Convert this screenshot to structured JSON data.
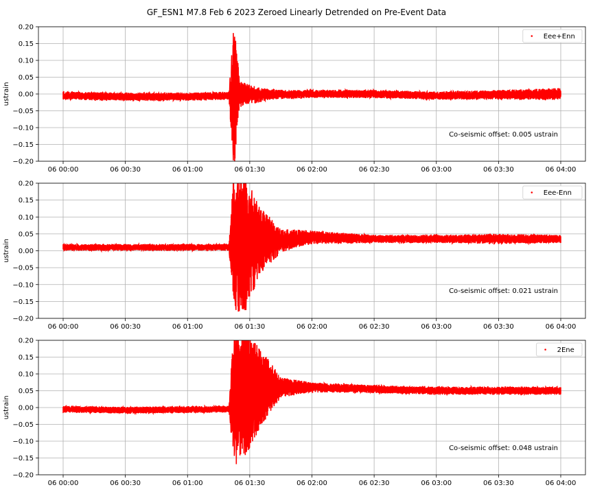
{
  "figure": {
    "title": "GF_ESN1 M7.8 Feb 6 2023 Zeroed Linearly Detrended on Pre-Event Data"
  },
  "colors": {
    "series": "#ff0000",
    "grid": "#b0b0b0",
    "axis": "#000000",
    "legend_border": "#cccccc"
  },
  "chart_data": [
    {
      "type": "scatter",
      "ylabel": "ustrain",
      "xlabel": "",
      "xlim": [
        "2023-02-06T00:00",
        "2023-02-06T04:00"
      ],
      "ylim": [
        -0.2,
        0.2
      ],
      "x_ticks": [
        "06 00:00",
        "06 00:30",
        "06 01:00",
        "06 01:30",
        "06 02:00",
        "06 02:30",
        "06 03:00",
        "06 03:30",
        "06 04:00"
      ],
      "y_ticks": [
        "0.20",
        "0.15",
        "0.10",
        "0.05",
        "0.00",
        "−0.05",
        "−0.10",
        "−0.15",
        "−0.20"
      ],
      "grid": true,
      "legend": {
        "position": "top-right",
        "entries": [
          "Eee+Enn"
        ]
      },
      "annotation": "Co-seismic offset: 0.005 ustrain",
      "series": [
        {
          "name": "Eee+Enn",
          "color": "#ff0000",
          "envelope": {
            "time": [
              "00:00",
              "00:30",
              "01:00",
              "01:20",
              "01:22",
              "01:23",
              "01:25",
              "01:30",
              "01:40",
              "02:00",
              "02:30",
              "03:00",
              "03:30",
              "04:00"
            ],
            "center": [
              -0.005,
              -0.008,
              -0.008,
              -0.005,
              0.0,
              0.0,
              0.0,
              -0.002,
              -0.002,
              0.0,
              0.0,
              -0.005,
              -0.002,
              0.0
            ],
            "half_amplitude": [
              0.012,
              0.012,
              0.012,
              0.012,
              0.2,
              0.2,
              0.04,
              0.03,
              0.015,
              0.012,
              0.012,
              0.012,
              0.014,
              0.018
            ]
          }
        }
      ]
    },
    {
      "type": "scatter",
      "ylabel": "ustrain",
      "xlabel": "",
      "xlim": [
        "2023-02-06T00:00",
        "2023-02-06T04:00"
      ],
      "ylim": [
        -0.2,
        0.2
      ],
      "x_ticks": [
        "06 00:00",
        "06 00:30",
        "06 01:00",
        "06 01:30",
        "06 02:00",
        "06 02:30",
        "06 03:00",
        "06 03:30",
        "06 04:00"
      ],
      "y_ticks": [
        "0.20",
        "0.15",
        "0.10",
        "0.05",
        "0.00",
        "−0.05",
        "−0.10",
        "−0.15",
        "−0.20"
      ],
      "grid": true,
      "legend": {
        "position": "top-right",
        "entries": [
          "Eee-Enn"
        ]
      },
      "annotation": "Co-seismic offset: 0.021 ustrain",
      "series": [
        {
          "name": "Eee-Enn",
          "color": "#ff0000",
          "envelope": {
            "time": [
              "00:00",
              "00:30",
              "01:00",
              "01:20",
              "01:22",
              "01:28",
              "01:35",
              "01:45",
              "02:00",
              "02:30",
              "03:00",
              "03:30",
              "04:00"
            ],
            "center": [
              0.01,
              0.01,
              0.01,
              0.01,
              0.02,
              0.02,
              0.03,
              0.03,
              0.04,
              0.035,
              0.035,
              0.035,
              0.035
            ],
            "half_amplitude": [
              0.01,
              0.01,
              0.01,
              0.01,
              0.2,
              0.2,
              0.1,
              0.035,
              0.02,
              0.012,
              0.012,
              0.015,
              0.012
            ]
          }
        }
      ]
    },
    {
      "type": "scatter",
      "ylabel": "ustrain",
      "xlabel": "",
      "xlim": [
        "2023-02-06T00:00",
        "2023-02-06T04:00"
      ],
      "ylim": [
        -0.2,
        0.2
      ],
      "x_ticks": [
        "06 00:00",
        "06 00:30",
        "06 01:00",
        "06 01:30",
        "06 02:00",
        "06 02:30",
        "06 03:00",
        "06 03:30",
        "06 04:00"
      ],
      "y_ticks": [
        "0.20",
        "0.15",
        "0.10",
        "0.05",
        "0.00",
        "−0.05",
        "−0.10",
        "−0.15",
        "−0.20"
      ],
      "grid": true,
      "legend": {
        "position": "top-right",
        "entries": [
          "2Ene"
        ]
      },
      "annotation": "Co-seismic offset: 0.048 ustrain",
      "series": [
        {
          "name": "2Ene",
          "color": "#ff0000",
          "envelope": {
            "time": [
              "00:00",
              "00:30",
              "01:00",
              "01:20",
              "01:22",
              "01:28",
              "01:35",
              "01:45",
              "02:00",
              "02:30",
              "03:00",
              "03:30",
              "04:00"
            ],
            "center": [
              -0.005,
              -0.008,
              -0.006,
              -0.005,
              0.02,
              0.05,
              0.06,
              0.06,
              0.06,
              0.055,
              0.05,
              0.05,
              0.05
            ],
            "half_amplitude": [
              0.01,
              0.01,
              0.01,
              0.01,
              0.2,
              0.2,
              0.12,
              0.03,
              0.015,
              0.012,
              0.012,
              0.012,
              0.012
            ]
          }
        }
      ]
    }
  ]
}
